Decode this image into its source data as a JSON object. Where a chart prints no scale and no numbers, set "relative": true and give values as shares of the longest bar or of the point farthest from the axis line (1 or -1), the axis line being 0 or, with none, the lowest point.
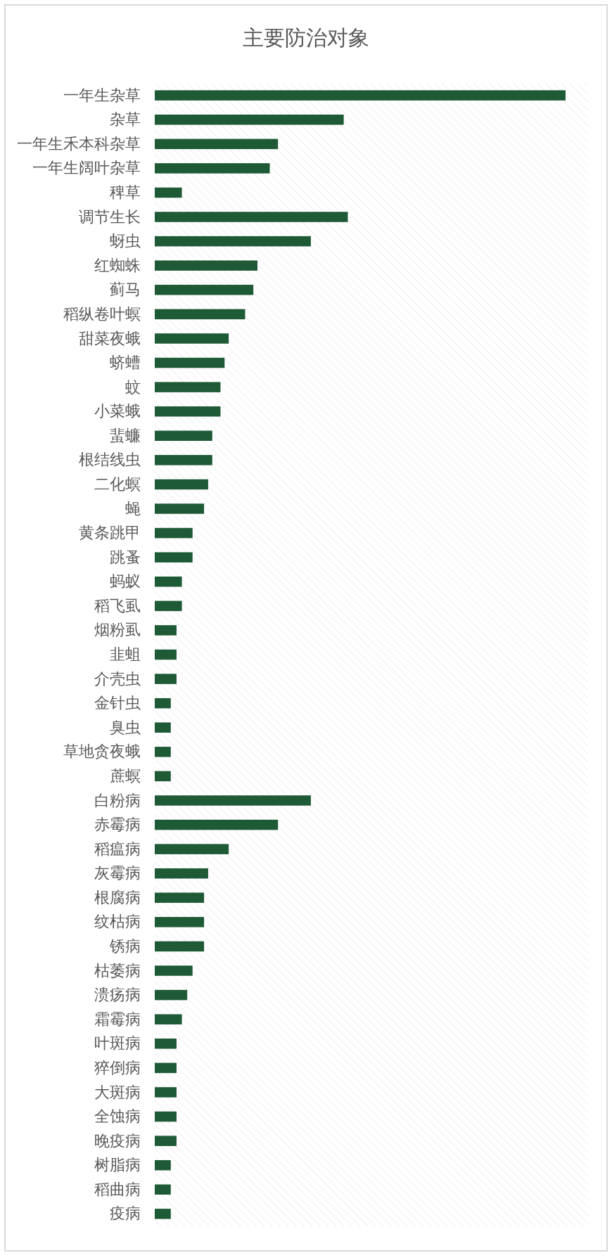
{
  "chart_data": {
    "type": "bar",
    "orientation": "horizontal",
    "relative": true,
    "title": "主要防治对象",
    "categories": [
      "一年生杂草",
      "杂草",
      "一年生禾本科杂草",
      "一年生阔叶杂草",
      "稗草",
      "调节生长",
      "蚜虫",
      "红蜘蛛",
      "蓟马",
      "稻纵卷叶螟",
      "甜菜夜蛾",
      "蛴螬",
      "蚊",
      "小菜蛾",
      "蜚蠊",
      "根结线虫",
      "二化螟",
      "蝇",
      "黄条跳甲",
      "跳蚤",
      "蚂蚁",
      "稻飞虱",
      "烟粉虱",
      "韭蛆",
      "介壳虫",
      "金针虫",
      "臭虫",
      "草地贪夜蛾",
      "蔗螟",
      "白粉病",
      "赤霉病",
      "稻瘟病",
      "灰霉病",
      "根腐病",
      "纹枯病",
      "锈病",
      "枯萎病",
      "溃疡病",
      "霜霉病",
      "叶斑病",
      "猝倒病",
      "大斑病",
      "全蚀病",
      "晚疫病",
      "树脂病",
      "稻曲病",
      "疫病"
    ],
    "values": [
      1,
      0.46,
      0.3,
      0.28,
      0.066,
      0.47,
      0.38,
      0.25,
      0.24,
      0.22,
      0.18,
      0.17,
      0.16,
      0.16,
      0.14,
      0.14,
      0.13,
      0.12,
      0.092,
      0.092,
      0.066,
      0.066,
      0.053,
      0.053,
      0.053,
      0.039,
      0.039,
      0.039,
      0.039,
      0.38,
      0.3,
      0.18,
      0.13,
      0.12,
      0.12,
      0.12,
      0.092,
      0.079,
      0.066,
      0.053,
      0.053,
      0.053,
      0.053,
      0.053,
      0.039,
      0.039,
      0.039
    ],
    "color": "#1f5a37"
  }
}
